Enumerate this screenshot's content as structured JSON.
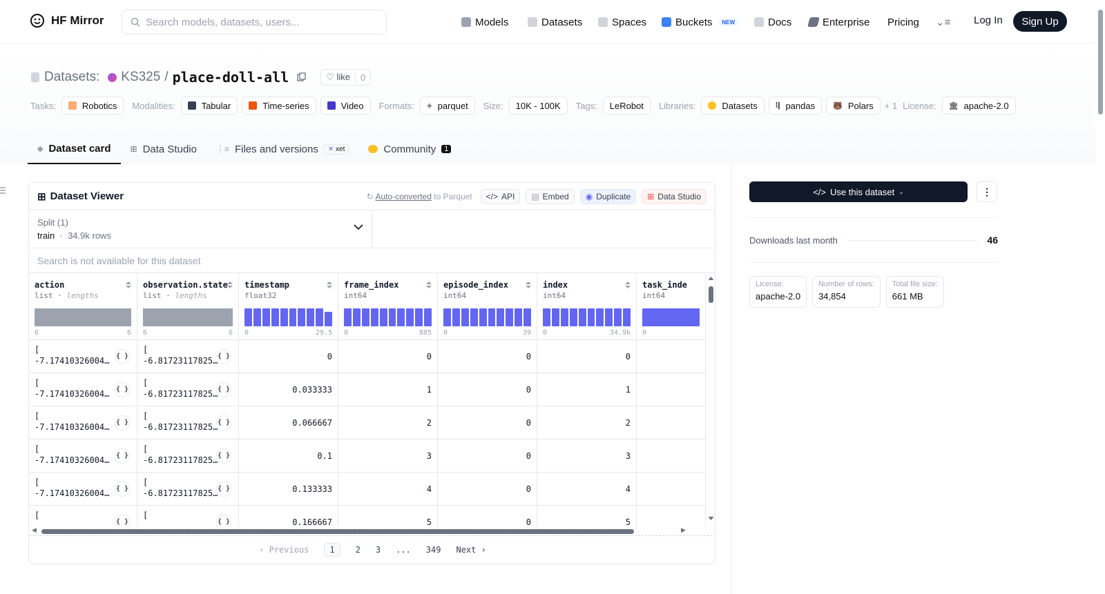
{
  "header": {
    "logo_text": "HF Mirror",
    "search_placeholder": "Search models, datasets, users...",
    "nav": [
      {
        "label": "Models",
        "icon": "cube-icon"
      },
      {
        "label": "Datasets",
        "icon": "database-icon"
      },
      {
        "label": "Spaces",
        "icon": "grid-icon"
      },
      {
        "label": "Buckets",
        "icon": "bucket-icon",
        "badge": "NEW"
      },
      {
        "label": "Docs",
        "icon": "book-icon"
      },
      {
        "label": "Enterprise",
        "icon": "enterprise-icon"
      },
      {
        "label": "Pricing"
      }
    ],
    "login": "Log In",
    "signup": "Sign Up"
  },
  "repo": {
    "prefix": "Datasets:",
    "owner": "KS325",
    "sep": "/",
    "name": "place-doll-all",
    "like_label": "like",
    "like_count": "0"
  },
  "tags": {
    "tasks_label": "Tasks:",
    "tasks": [
      "Robotics"
    ],
    "modalities_label": "Modalities:",
    "modalities": [
      "Tabular",
      "Time-series",
      "Video"
    ],
    "formats_label": "Formats:",
    "formats": [
      "parquet"
    ],
    "size_label": "Size:",
    "size": "10K - 100K",
    "tags_label": "Tags:",
    "tags": [
      "LeRobot"
    ],
    "libraries_label": "Libraries:",
    "libraries": [
      "Datasets",
      "pandas",
      "Polars"
    ],
    "more": "+ 1",
    "license_label": "License:",
    "license": "apache-2.0"
  },
  "tabs": [
    {
      "label": "Dataset card",
      "active": true
    },
    {
      "label": "Data Studio"
    },
    {
      "label": "Files and versions",
      "badge": "xet"
    },
    {
      "label": "Community",
      "badge": "1"
    }
  ],
  "viewer": {
    "title": "Dataset Viewer",
    "auto_converted": "Auto-converted",
    "to_parquet": "to Parquet",
    "api": "API",
    "embed": "Embed",
    "duplicate": "Duplicate",
    "data_studio": "Data Studio",
    "split_label": "Split (1)",
    "split_value": "train",
    "split_rows": "34.9k rows",
    "no_search": "Search is not available for this dataset",
    "columns": [
      {
        "name": "action",
        "type": "list",
        "type_sub": "lengths",
        "min": "6",
        "max": "6",
        "kind": "list"
      },
      {
        "name": "observation.state",
        "type": "list",
        "type_sub": "lengths",
        "min": "6",
        "max": "6",
        "kind": "list"
      },
      {
        "name": "timestamp",
        "type": "float32",
        "min": "0",
        "max": "29.5",
        "kind": "num"
      },
      {
        "name": "frame_index",
        "type": "int64",
        "min": "0",
        "max": "885",
        "kind": "num"
      },
      {
        "name": "episode_index",
        "type": "int64",
        "min": "0",
        "max": "39",
        "kind": "num"
      },
      {
        "name": "index",
        "type": "int64",
        "min": "0",
        "max": "34.9k",
        "kind": "num"
      },
      {
        "name": "task_inde",
        "type": "int64",
        "min": "0",
        "max": "",
        "kind": "num"
      }
    ],
    "rows": [
      {
        "action": "-7.17410326004…",
        "state": "-6.81723117825…",
        "timestamp": "0",
        "frame_index": "0",
        "episode_index": "0",
        "index": "0"
      },
      {
        "action": "-7.17410326004…",
        "state": "-6.81723117825…",
        "timestamp": "0.033333",
        "frame_index": "1",
        "episode_index": "0",
        "index": "1"
      },
      {
        "action": "-7.17410326004…",
        "state": "-6.81723117825…",
        "timestamp": "0.066667",
        "frame_index": "2",
        "episode_index": "0",
        "index": "2"
      },
      {
        "action": "-7.17410326004…",
        "state": "-6.81723117825…",
        "timestamp": "0.1",
        "frame_index": "3",
        "episode_index": "0",
        "index": "3"
      },
      {
        "action": "-7.17410326004…",
        "state": "-6.81723117825…",
        "timestamp": "0.133333",
        "frame_index": "4",
        "episode_index": "0",
        "index": "4"
      },
      {
        "action": "",
        "state": "",
        "timestamp": "0.166667",
        "frame_index": "5",
        "episode_index": "0",
        "index": "5"
      }
    ],
    "list_open": "[",
    "json_btn": "{ }",
    "pager": {
      "prev": "Previous",
      "pages": [
        "1",
        "2",
        "3",
        "...",
        "349"
      ],
      "next": "Next"
    }
  },
  "sidebar": {
    "use_btn": "Use this dataset",
    "downloads_label": "Downloads last month",
    "downloads_value": "46",
    "stats": [
      {
        "label": "License:",
        "value": "apache-2.0"
      },
      {
        "label": "Number of rows:",
        "value": "34,854"
      },
      {
        "label": "Total file size:",
        "value": "661 MB"
      }
    ]
  }
}
